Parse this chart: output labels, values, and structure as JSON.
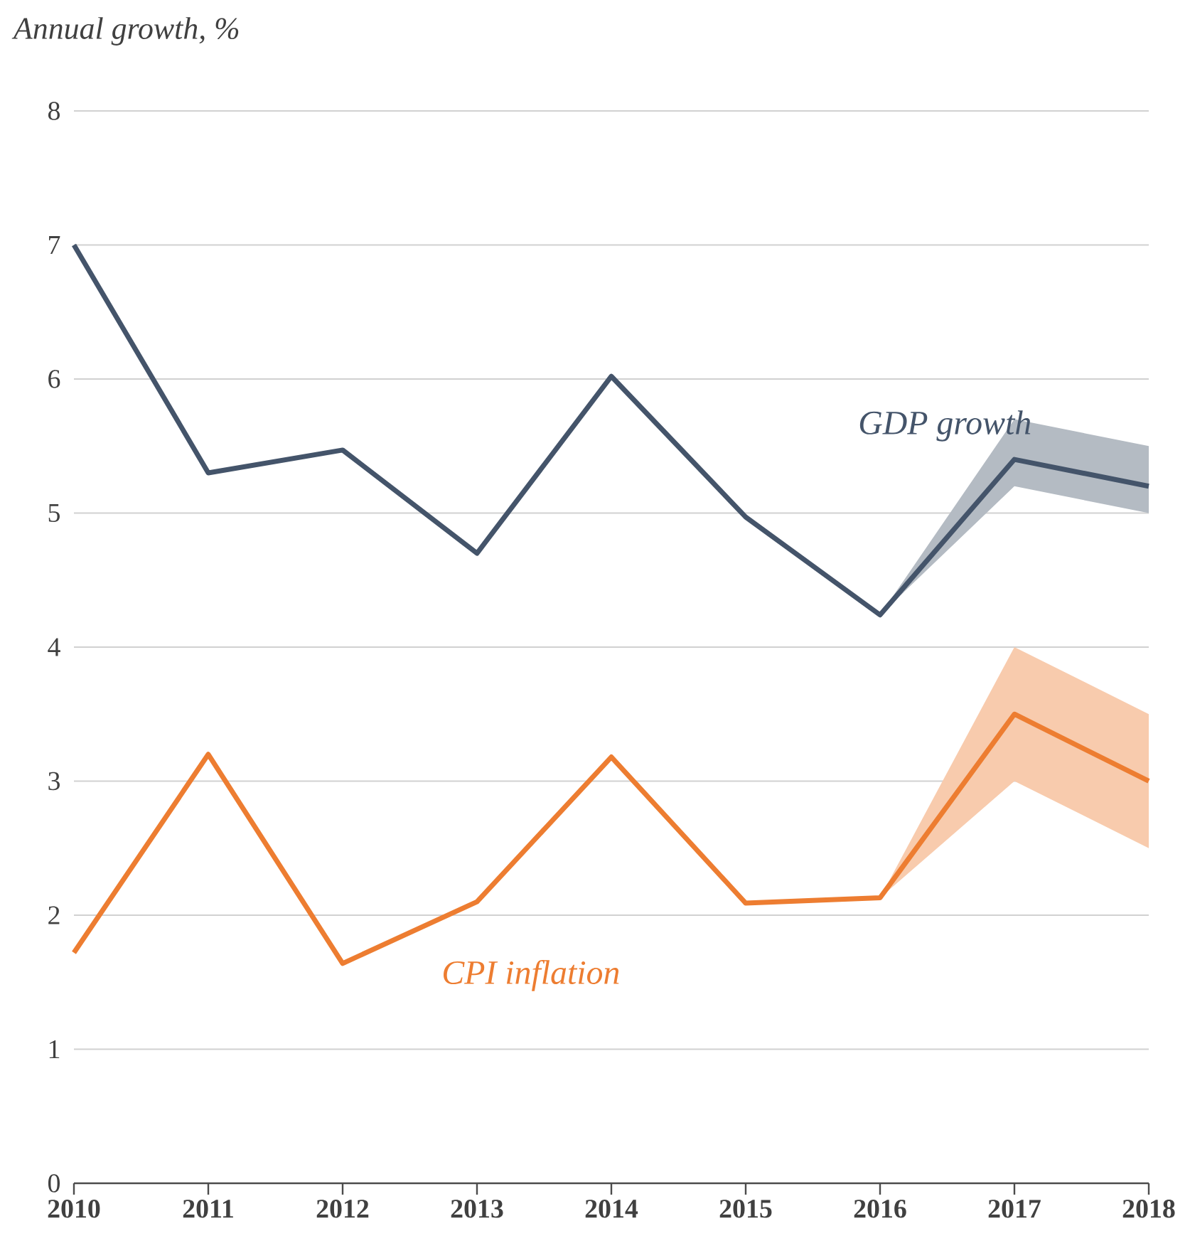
{
  "chart_data": {
    "type": "line",
    "title": "Annual growth, %",
    "x": [
      2010,
      2011,
      2012,
      2013,
      2014,
      2015,
      2016,
      2017,
      2018
    ],
    "series": [
      {
        "name": "GDP growth",
        "color": "#44546a",
        "values": [
          7.0,
          5.3,
          5.47,
          4.7,
          6.02,
          4.97,
          4.24,
          5.4,
          5.2
        ],
        "lower": [
          null,
          null,
          null,
          null,
          null,
          null,
          4.24,
          5.2,
          5.0
        ],
        "upper": [
          null,
          null,
          null,
          null,
          null,
          null,
          4.24,
          5.7,
          5.5
        ]
      },
      {
        "name": "CPI inflation",
        "color": "#ed7d31",
        "values": [
          1.72,
          3.2,
          1.64,
          2.1,
          3.18,
          2.09,
          2.13,
          3.5,
          3.0
        ],
        "lower": [
          null,
          null,
          null,
          null,
          null,
          null,
          2.13,
          3.0,
          2.5
        ],
        "upper": [
          null,
          null,
          null,
          null,
          null,
          null,
          2.13,
          4.0,
          3.5
        ]
      }
    ],
    "xlim": [
      2010,
      2018
    ],
    "xticks": [
      2010,
      2011,
      2012,
      2013,
      2014,
      2015,
      2016,
      2017,
      2018
    ],
    "ylim": [
      0,
      8
    ],
    "yticks": [
      0,
      1,
      2,
      3,
      4,
      5,
      6,
      7,
      8
    ],
    "grid": "y",
    "marker": "none",
    "line_style": "solid"
  }
}
